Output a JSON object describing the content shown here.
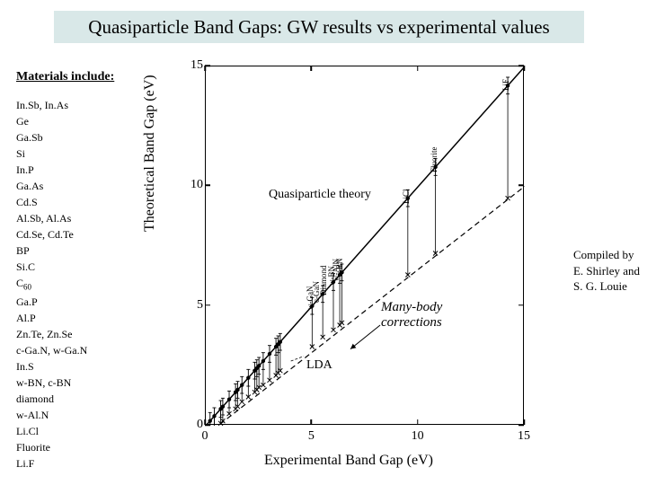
{
  "title": "Quasiparticle Band Gaps:  GW results vs experimental values",
  "materials_label": "Materials include:",
  "materials": [
    "In.Sb, In.As",
    "Ge",
    "Ga.Sb",
    "Si",
    "In.P",
    "Ga.As",
    "Cd.S",
    "Al.Sb, Al.As",
    "Cd.Se, Cd.Te",
    "BP",
    "Si.C",
    "C<sub>60</sub>",
    "Ga.P",
    "Al.P",
    "Zn.Te, Zn.Se",
    "c-Ga.N, w-Ga.N",
    "In.S",
    "w-BN, c-BN",
    "diamond",
    "w-Al.N",
    "Li.Cl",
    "Fluorite",
    "Li.F"
  ],
  "compiled": [
    "Compiled by",
    "E. Shirley and",
    "S. G. Louie"
  ],
  "chart": {
    "type": "scatter",
    "xlabel": "Experimental Band Gap (eV)",
    "ylabel": "Theoretical Band Gap (eV)",
    "xlim": [
      0,
      15
    ],
    "ylim": [
      0,
      15
    ],
    "ticks": [
      0,
      5,
      10,
      15
    ],
    "colors": {
      "axis": "#000000",
      "bg": "#ffffff",
      "marker": "#000000",
      "lda_dash": "#000000"
    },
    "annotations": {
      "qp_theory": "Quasiparticle theory",
      "lda": "LDA",
      "many_body": "Many-body\ncorrections"
    },
    "rot_labels_upper": [
      "c-BN",
      "w-AlN",
      "w-BN",
      "Diamond",
      "c-GaN",
      "w-GaN"
    ],
    "rot_labels_right": [
      "LiF",
      "Fluorite",
      "LiCl"
    ],
    "qp_points": [
      [
        0.2,
        0.2
      ],
      [
        0.4,
        0.4
      ],
      [
        0.7,
        0.7
      ],
      [
        0.8,
        0.8
      ],
      [
        1.1,
        1.1
      ],
      [
        1.4,
        1.4
      ],
      [
        1.5,
        1.5
      ],
      [
        1.7,
        1.7
      ],
      [
        2.0,
        2.0
      ],
      [
        2.3,
        2.3
      ],
      [
        2.4,
        2.4
      ],
      [
        2.5,
        2.5
      ],
      [
        2.7,
        2.7
      ],
      [
        3.0,
        3.0
      ],
      [
        3.3,
        3.3
      ],
      [
        3.4,
        3.4
      ],
      [
        3.5,
        3.5
      ],
      [
        5.0,
        5.0
      ],
      [
        5.5,
        5.5
      ],
      [
        6.0,
        6.0
      ],
      [
        6.3,
        6.3
      ],
      [
        6.4,
        6.4
      ],
      [
        9.5,
        9.5
      ],
      [
        10.8,
        10.8
      ],
      [
        14.2,
        14.2
      ]
    ],
    "lda_points": [
      [
        0.2,
        -0.3
      ],
      [
        0.4,
        -0.1
      ],
      [
        0.7,
        0.1
      ],
      [
        0.8,
        0.2
      ],
      [
        1.1,
        0.5
      ],
      [
        1.4,
        0.7
      ],
      [
        1.5,
        0.8
      ],
      [
        1.7,
        1.0
      ],
      [
        2.0,
        1.2
      ],
      [
        2.3,
        1.4
      ],
      [
        2.4,
        1.5
      ],
      [
        2.5,
        1.6
      ],
      [
        2.7,
        1.7
      ],
      [
        3.0,
        1.9
      ],
      [
        3.3,
        2.1
      ],
      [
        3.4,
        2.2
      ],
      [
        3.5,
        2.3
      ],
      [
        5.0,
        3.3
      ],
      [
        5.5,
        3.7
      ],
      [
        6.0,
        4.0
      ],
      [
        6.3,
        4.2
      ],
      [
        6.4,
        4.3
      ],
      [
        9.5,
        6.3
      ],
      [
        10.8,
        7.2
      ],
      [
        14.2,
        9.5
      ]
    ],
    "error_bar_height": 0.35,
    "lda_line": [
      [
        0,
        -0.4
      ],
      [
        15,
        10.0
      ]
    ]
  }
}
